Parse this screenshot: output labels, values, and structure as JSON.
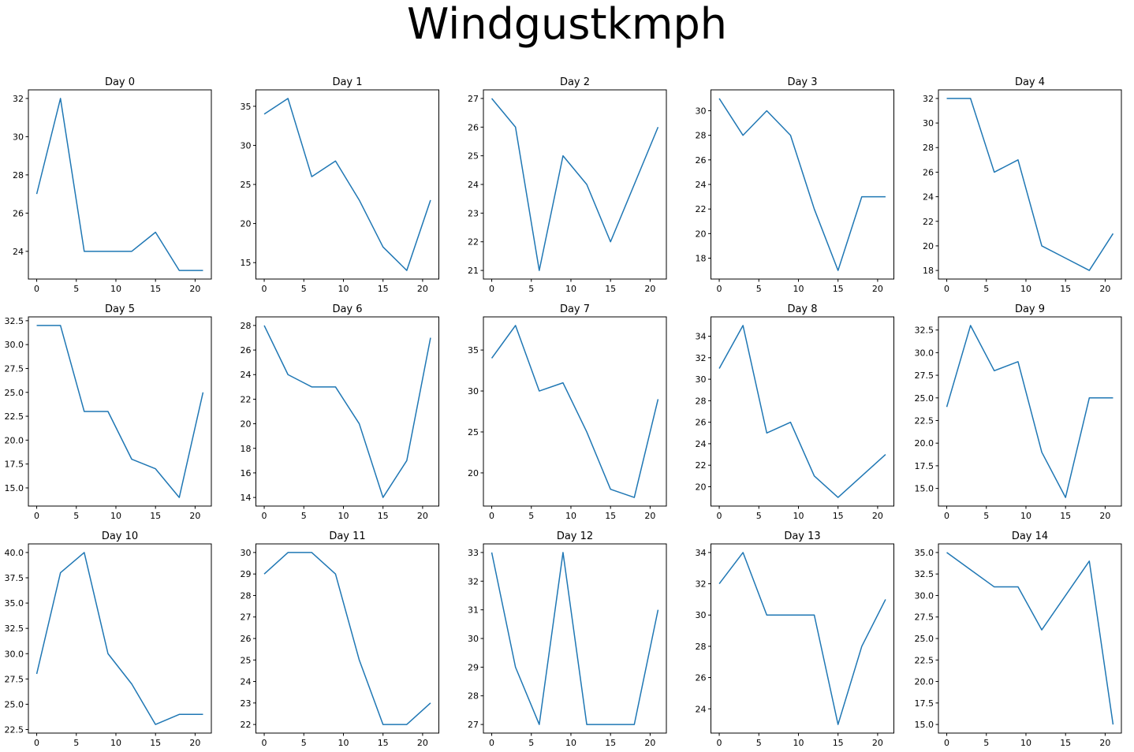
{
  "title": "Windgustkmph",
  "colors": {
    "line": "#1f77b4"
  },
  "chart_data": [
    {
      "type": "line",
      "title": "Day 0",
      "x": [
        0,
        3,
        6,
        9,
        12,
        15,
        18,
        21
      ],
      "y": [
        27,
        32,
        24,
        24,
        24,
        25,
        23,
        23
      ],
      "xlim": [
        -1.05,
        22.05
      ],
      "ylim": [
        22.55,
        32.45
      ],
      "xticks": [
        "0",
        "5",
        "10",
        "15",
        "20"
      ],
      "yticks": [
        "24",
        "26",
        "28",
        "30",
        "32"
      ]
    },
    {
      "type": "line",
      "title": "Day 1",
      "x": [
        0,
        3,
        6,
        9,
        12,
        15,
        18,
        21
      ],
      "y": [
        34,
        36,
        26,
        28,
        23,
        17,
        14,
        23
      ],
      "xlim": [
        -1.05,
        22.05
      ],
      "ylim": [
        12.9,
        37.1
      ],
      "xticks": [
        "0",
        "5",
        "10",
        "15",
        "20"
      ],
      "yticks": [
        "15",
        "20",
        "25",
        "30",
        "35"
      ]
    },
    {
      "type": "line",
      "title": "Day 2",
      "x": [
        0,
        3,
        6,
        9,
        12,
        15,
        18,
        21
      ],
      "y": [
        27,
        26,
        21,
        25,
        24,
        22,
        24,
        26
      ],
      "xlim": [
        -1.05,
        22.05
      ],
      "ylim": [
        20.7,
        27.3
      ],
      "xticks": [
        "0",
        "5",
        "10",
        "15",
        "20"
      ],
      "yticks": [
        "21",
        "22",
        "23",
        "24",
        "25",
        "26",
        "27"
      ]
    },
    {
      "type": "line",
      "title": "Day 3",
      "x": [
        0,
        3,
        6,
        9,
        12,
        15,
        18,
        21
      ],
      "y": [
        31,
        28,
        30,
        28,
        22,
        17,
        23,
        23
      ],
      "xlim": [
        -1.05,
        22.05
      ],
      "ylim": [
        16.3,
        31.7
      ],
      "xticks": [
        "0",
        "5",
        "10",
        "15",
        "20"
      ],
      "yticks": [
        "18",
        "20",
        "22",
        "24",
        "26",
        "28",
        "30"
      ]
    },
    {
      "type": "line",
      "title": "Day 4",
      "x": [
        0,
        3,
        6,
        9,
        12,
        15,
        18,
        21
      ],
      "y": [
        32,
        32,
        26,
        27,
        20,
        19,
        18,
        21
      ],
      "xlim": [
        -1.05,
        22.05
      ],
      "ylim": [
        17.3,
        32.7
      ],
      "xticks": [
        "0",
        "5",
        "10",
        "15",
        "20"
      ],
      "yticks": [
        "18",
        "20",
        "22",
        "24",
        "26",
        "28",
        "30",
        "32"
      ]
    },
    {
      "type": "line",
      "title": "Day 5",
      "x": [
        0,
        3,
        6,
        9,
        12,
        15,
        18,
        21
      ],
      "y": [
        32,
        32,
        23,
        23,
        18,
        17,
        14,
        25
      ],
      "xlim": [
        -1.05,
        22.05
      ],
      "ylim": [
        13.1,
        32.9
      ],
      "xticks": [
        "0",
        "5",
        "10",
        "15",
        "20"
      ],
      "yticks": [
        "15.0",
        "17.5",
        "20.0",
        "22.5",
        "25.0",
        "27.5",
        "30.0",
        "32.5"
      ]
    },
    {
      "type": "line",
      "title": "Day 6",
      "x": [
        0,
        3,
        6,
        9,
        12,
        15,
        18,
        21
      ],
      "y": [
        28,
        24,
        23,
        23,
        20,
        14,
        17,
        27
      ],
      "xlim": [
        -1.05,
        22.05
      ],
      "ylim": [
        13.3,
        28.7
      ],
      "xticks": [
        "0",
        "5",
        "10",
        "15",
        "20"
      ],
      "yticks": [
        "14",
        "16",
        "18",
        "20",
        "22",
        "24",
        "26",
        "28"
      ]
    },
    {
      "type": "line",
      "title": "Day 7",
      "x": [
        0,
        3,
        6,
        9,
        12,
        15,
        18,
        21
      ],
      "y": [
        34,
        38,
        30,
        31,
        25,
        18,
        17,
        29
      ],
      "xlim": [
        -1.05,
        22.05
      ],
      "ylim": [
        15.95,
        39.05
      ],
      "xticks": [
        "0",
        "5",
        "10",
        "15",
        "20"
      ],
      "yticks": [
        "20",
        "25",
        "30",
        "35"
      ]
    },
    {
      "type": "line",
      "title": "Day 8",
      "x": [
        0,
        3,
        6,
        9,
        12,
        15,
        18,
        21
      ],
      "y": [
        31,
        35,
        25,
        26,
        21,
        19,
        21,
        23
      ],
      "xlim": [
        -1.05,
        22.05
      ],
      "ylim": [
        18.2,
        35.8
      ],
      "xticks": [
        "0",
        "5",
        "10",
        "15",
        "20"
      ],
      "yticks": [
        "20",
        "22",
        "24",
        "26",
        "28",
        "30",
        "32",
        "34"
      ]
    },
    {
      "type": "line",
      "title": "Day 9",
      "x": [
        0,
        3,
        6,
        9,
        12,
        15,
        18,
        21
      ],
      "y": [
        24,
        33,
        28,
        29,
        19,
        14,
        25,
        25
      ],
      "xlim": [
        -1.05,
        22.05
      ],
      "ylim": [
        13.05,
        33.95
      ],
      "xticks": [
        "0",
        "5",
        "10",
        "15",
        "20"
      ],
      "yticks": [
        "15.0",
        "17.5",
        "20.0",
        "22.5",
        "25.0",
        "27.5",
        "30.0",
        "32.5"
      ]
    },
    {
      "type": "line",
      "title": "Day 10",
      "x": [
        0,
        3,
        6,
        9,
        12,
        15,
        18,
        21
      ],
      "y": [
        28,
        38,
        40,
        30,
        27,
        23,
        24,
        24
      ],
      "xlim": [
        -1.05,
        22.05
      ],
      "ylim": [
        22.15,
        40.85
      ],
      "xticks": [
        "0",
        "5",
        "10",
        "15",
        "20"
      ],
      "yticks": [
        "22.5",
        "25.0",
        "27.5",
        "30.0",
        "32.5",
        "35.0",
        "37.5",
        "40.0"
      ]
    },
    {
      "type": "line",
      "title": "Day 11",
      "x": [
        0,
        3,
        6,
        9,
        12,
        15,
        18,
        21
      ],
      "y": [
        29,
        30,
        30,
        29,
        25,
        22,
        22,
        23
      ],
      "xlim": [
        -1.05,
        22.05
      ],
      "ylim": [
        21.6,
        30.4
      ],
      "xticks": [
        "0",
        "5",
        "10",
        "15",
        "20"
      ],
      "yticks": [
        "22",
        "23",
        "24",
        "25",
        "26",
        "27",
        "28",
        "29",
        "30"
      ]
    },
    {
      "type": "line",
      "title": "Day 12",
      "x": [
        0,
        3,
        6,
        9,
        12,
        15,
        18,
        21
      ],
      "y": [
        33,
        29,
        27,
        33,
        27,
        27,
        27,
        31
      ],
      "xlim": [
        -1.05,
        22.05
      ],
      "ylim": [
        26.7,
        33.3
      ],
      "xticks": [
        "0",
        "5",
        "10",
        "15",
        "20"
      ],
      "yticks": [
        "27",
        "28",
        "29",
        "30",
        "31",
        "32",
        "33"
      ]
    },
    {
      "type": "line",
      "title": "Day 13",
      "x": [
        0,
        3,
        6,
        9,
        12,
        15,
        18,
        21
      ],
      "y": [
        32,
        34,
        30,
        30,
        30,
        23,
        28,
        31
      ],
      "xlim": [
        -1.05,
        22.05
      ],
      "ylim": [
        22.45,
        34.55
      ],
      "xticks": [
        "0",
        "5",
        "10",
        "15",
        "20"
      ],
      "yticks": [
        "24",
        "26",
        "28",
        "30",
        "32",
        "34"
      ]
    },
    {
      "type": "line",
      "title": "Day 14",
      "x": [
        0,
        3,
        6,
        9,
        12,
        15,
        18,
        21
      ],
      "y": [
        35,
        33,
        31,
        31,
        26,
        30,
        34,
        15
      ],
      "xlim": [
        -1.05,
        22.05
      ],
      "ylim": [
        14.0,
        36.0
      ],
      "xticks": [
        "0",
        "5",
        "10",
        "15",
        "20"
      ],
      "yticks": [
        "15.0",
        "17.5",
        "20.0",
        "22.5",
        "25.0",
        "27.5",
        "30.0",
        "32.5",
        "35.0"
      ]
    }
  ]
}
